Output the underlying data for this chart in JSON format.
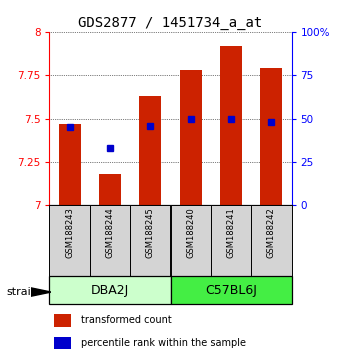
{
  "title": "GDS2877 / 1451734_a_at",
  "samples": [
    "GSM188243",
    "GSM188244",
    "GSM188245",
    "GSM188240",
    "GSM188241",
    "GSM188242"
  ],
  "transformed_counts": [
    7.47,
    7.18,
    7.63,
    7.78,
    7.92,
    7.79
  ],
  "percentile_ranks": [
    45,
    33,
    46,
    50,
    50,
    48
  ],
  "y_min": 7.0,
  "y_max": 8.0,
  "y_ticks": [
    7.0,
    7.25,
    7.5,
    7.75,
    8.0
  ],
  "y_tick_labels": [
    "7",
    "7.25",
    "7.5",
    "7.75",
    "8"
  ],
  "right_y_ticks": [
    0,
    25,
    50,
    75,
    100
  ],
  "right_y_labels": [
    "0",
    "25",
    "50",
    "75",
    "100%"
  ],
  "bar_color": "#cc2200",
  "dot_color": "#0000cc",
  "bar_width": 0.55,
  "bg_color": "#ffffff",
  "dba_color": "#ccffcc",
  "c57_color": "#44ee44",
  "sample_bg": "#d4d4d4",
  "groups_info": [
    [
      "DBA2J",
      0,
      3
    ],
    [
      "C57BL6J",
      3,
      6
    ]
  ],
  "strain_label": "strain",
  "legend_bar_label": "transformed count",
  "legend_dot_label": "percentile rank within the sample",
  "title_fontsize": 10,
  "tick_fontsize": 7.5,
  "sample_fontsize": 6,
  "group_label_fontsize": 9
}
